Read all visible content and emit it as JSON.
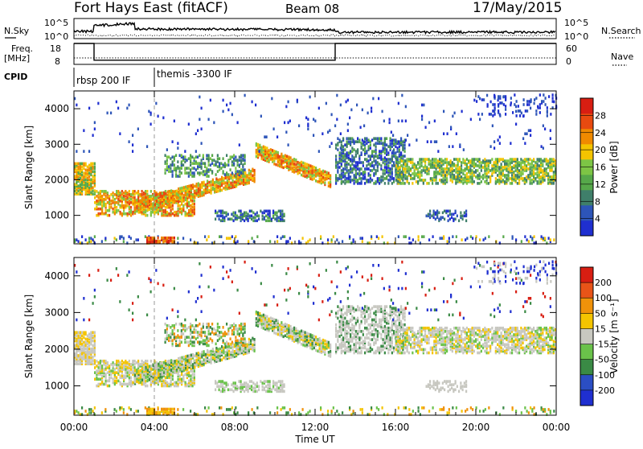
{
  "header": {
    "station": "Fort Hays East (fitACF)",
    "beam": "Beam 08",
    "date": "17/May/2015"
  },
  "top_labels": {
    "nsky": "N.Sky",
    "nsearch": "N.Search",
    "freq": "Freq.",
    "freq_unit": "[MHz]",
    "nave": "Nave",
    "cpid": "CPID",
    "exp_tick_top": "10^5",
    "exp_tick_bottom": "10^0",
    "freq_tick_18": "18",
    "freq_tick_8": "8",
    "nave_tick_60": "60",
    "nave_tick_0": "0"
  },
  "cpid_segments": [
    {
      "label": "rbsp 200 IF",
      "start_h": 0.0
    },
    {
      "label": "themis -3300 IF",
      "start_h": 4.0
    }
  ],
  "colors": {
    "power": [
      "#1f2fd0",
      "#2d55b8",
      "#3f7f6a",
      "#56a84a",
      "#7dc545",
      "#f4c400",
      "#f08a00",
      "#e84a10",
      "#d81e12"
    ],
    "velocity": [
      "#1f2fd0",
      "#2b4ec4",
      "#3a8a45",
      "#6ac24a",
      "#c8c8c0",
      "#f4c400",
      "#f0920a",
      "#e85418",
      "#d81e12"
    ],
    "gray_scatter": "#c7c7c0"
  },
  "chart_data": [
    {
      "type": "heatmap",
      "name": "power",
      "ylabel": "Slant Range [km]",
      "yticks": [
        1000,
        2000,
        3000,
        4000
      ],
      "ylim": [
        200,
        4500
      ],
      "xlim_hours": [
        0,
        24
      ],
      "colorbar_label": "Power [dB]",
      "colorbar_ticks": [
        "4",
        "8",
        "12",
        "16",
        "20",
        "24",
        "28"
      ]
    },
    {
      "type": "heatmap",
      "name": "velocity",
      "ylabel": "Slant Range [km]",
      "yticks": [
        1000,
        2000,
        3000,
        4000
      ],
      "ylim": [
        200,
        4500
      ],
      "xlim_hours": [
        0,
        24
      ],
      "colorbar_label": "Velocity [m s⁻¹]",
      "colorbar_ticks": [
        "200",
        "100",
        "50",
        "15",
        "-15",
        "-50",
        "-100",
        "-200"
      ],
      "xlabel": "Time UT",
      "xticks": [
        "00:00",
        "04:00",
        "08:00",
        "12:00",
        "16:00",
        "20:00",
        "00:00"
      ]
    },
    {
      "type": "line",
      "name": "freq_nave",
      "freq_mhz_segments": [
        {
          "from_h": 0,
          "to_h": 1.0,
          "value": 18
        },
        {
          "from_h": 1.0,
          "to_h": 13.0,
          "value": 10
        },
        {
          "from_h": 13.0,
          "to_h": 24,
          "value": 18
        }
      ]
    }
  ]
}
